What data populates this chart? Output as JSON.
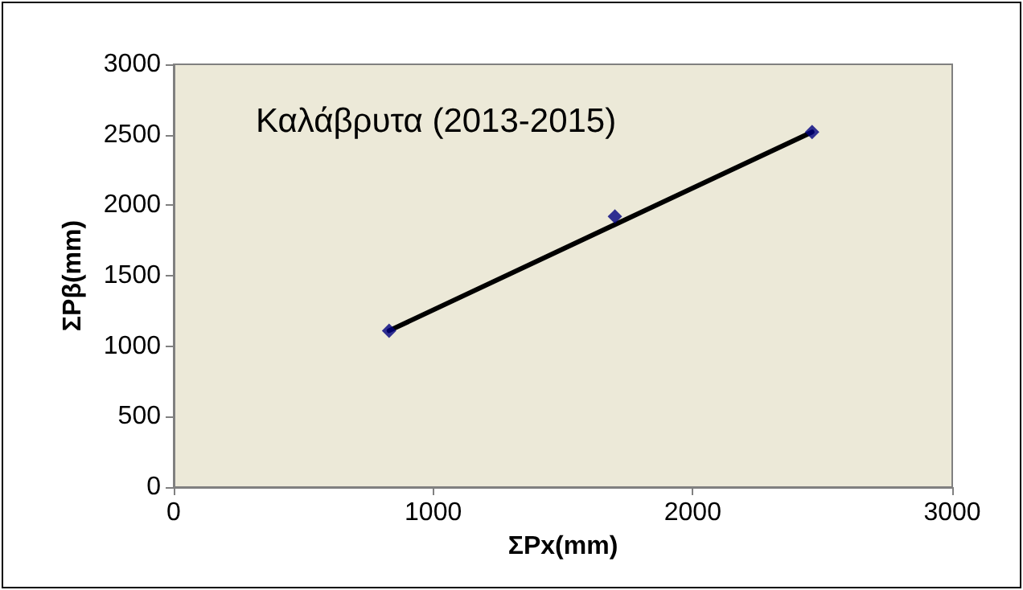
{
  "chart_data": {
    "type": "scatter",
    "title": "Καλάβρυτα (2013-2015)",
    "xlabel": "ΣPx(mm)",
    "ylabel": "ΣPβ(mm)",
    "series": [
      {
        "type": "scatter",
        "color": "#000080",
        "x": [
          830,
          1700,
          2460
        ],
        "values": [
          1110,
          1920,
          2520
        ],
        "marker": "diamond"
      },
      {
        "type": "line",
        "color": "#000000",
        "x": [
          830,
          2460
        ],
        "values": [
          1110,
          2520
        ],
        "marker": "none",
        "line_style": "solid"
      }
    ],
    "xlim": [
      0,
      3000
    ],
    "xticks": [
      0,
      1000,
      2000,
      3000
    ],
    "ylim": [
      0,
      3000
    ],
    "yticks": [
      0,
      500,
      1000,
      1500,
      2000,
      2500,
      3000
    ],
    "grid": false
  }
}
